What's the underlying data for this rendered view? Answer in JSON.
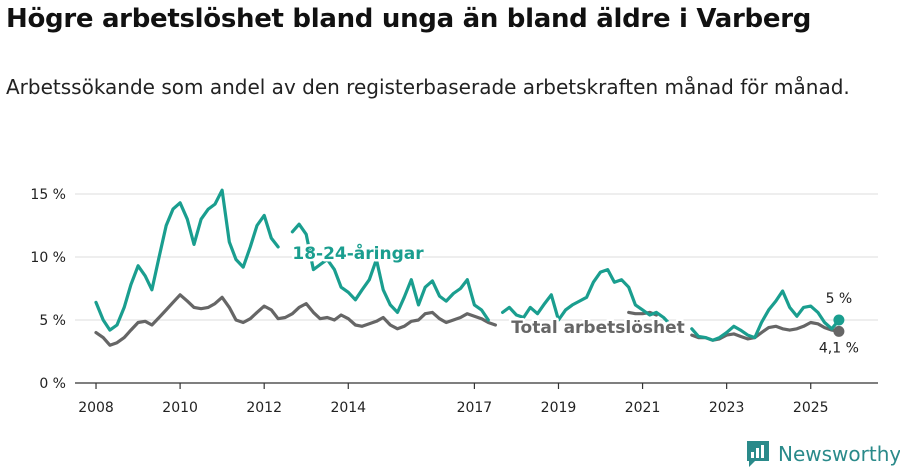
{
  "header": {
    "title": "Högre arbetslöshet bland unga än bland äldre i Varberg",
    "subtitle": "Arbetssökande som andel av den registerbaserade arbetskraften månad för månad."
  },
  "brand": {
    "name": "Newsworthy",
    "icon": "newsworthy-logo-icon",
    "color": "#2a8a8a"
  },
  "chart_data": {
    "type": "line",
    "title": "Högre arbetslöshet bland unga än bland äldre i Varberg",
    "subtitle": "Arbetssökande som andel av den registerbaserade arbetskraften månad för månad.",
    "xlabel": "",
    "ylabel": "",
    "xlim": [
      2007.5,
      2026.6
    ],
    "ylim": [
      0,
      15
    ],
    "yticks": [
      0,
      5,
      10,
      15
    ],
    "ytick_labels": [
      "0 %",
      "5 %",
      "10 %",
      "15 %"
    ],
    "xticks": [
      2008,
      2010,
      2012,
      2014,
      2017,
      2019,
      2021,
      2023,
      2025
    ],
    "xtick_labels": [
      "2008",
      "2010",
      "2012",
      "2014",
      "2017",
      "2019",
      "2021",
      "2023",
      "2025"
    ],
    "grid": "horizontal",
    "series": [
      {
        "name": "18-24-åringar",
        "label": "18-24-åringar",
        "color": "#1a9e8f",
        "end_label": "5 %",
        "end_value": 5.0,
        "x": [
          2008.0,
          2008.17,
          2008.33,
          2008.5,
          2008.67,
          2008.83,
          2009.0,
          2009.17,
          2009.33,
          2009.5,
          2009.67,
          2009.83,
          2010.0,
          2010.17,
          2010.33,
          2010.5,
          2010.67,
          2010.83,
          2011.0,
          2011.17,
          2011.33,
          2011.5,
          2011.67,
          2011.83,
          2012.0,
          2012.17,
          2012.33,
          null,
          2012.67,
          2012.83,
          2013.0,
          2013.17,
          2013.33,
          2013.5,
          2013.67,
          2013.83,
          2014.0,
          2014.17,
          2014.33,
          2014.5,
          2014.67,
          2014.83,
          2015.0,
          2015.17,
          2015.33,
          2015.5,
          2015.67,
          2015.83,
          2016.0,
          2016.17,
          2016.33,
          2016.5,
          2016.67,
          2016.83,
          2017.0,
          2017.17,
          2017.33,
          null,
          2017.67,
          2017.83,
          2018.0,
          2018.17,
          2018.33,
          2018.5,
          2018.67,
          2018.83,
          2019.0,
          2019.17,
          2019.33,
          2019.5,
          2019.67,
          2019.83,
          2020.0,
          2020.17,
          2020.33,
          2020.5,
          2020.67,
          2020.83,
          2021.0,
          2021.17,
          2021.33,
          2021.5,
          2021.67,
          2021.83,
          null,
          2022.17,
          2022.33,
          2022.5,
          2022.67,
          2022.83,
          2023.0,
          2023.17,
          2023.33,
          2023.5,
          2023.67,
          2023.83,
          2024.0,
          2024.17,
          2024.33,
          2024.5,
          2024.67,
          2024.83,
          2025.0,
          2025.17,
          2025.33,
          2025.5,
          2025.67
        ],
        "values": [
          6.4,
          5.0,
          4.2,
          4.6,
          6.0,
          7.8,
          9.3,
          8.5,
          7.4,
          10.0,
          12.5,
          13.8,
          14.3,
          13.0,
          11.0,
          13.0,
          13.8,
          14.2,
          15.3,
          11.2,
          9.8,
          9.2,
          10.8,
          12.5,
          13.3,
          11.5,
          10.8,
          null,
          12.0,
          12.6,
          11.8,
          9.0,
          9.4,
          9.8,
          9.0,
          7.6,
          7.2,
          6.6,
          7.4,
          8.2,
          9.8,
          7.4,
          6.2,
          5.6,
          6.8,
          8.2,
          6.2,
          7.6,
          8.1,
          6.9,
          6.5,
          7.1,
          7.5,
          8.2,
          6.2,
          5.8,
          5.0,
          null,
          5.6,
          6.0,
          5.4,
          5.2,
          6.0,
          5.5,
          6.3,
          7.0,
          5.0,
          5.8,
          6.2,
          6.5,
          6.8,
          8.0,
          8.8,
          9.0,
          8.0,
          8.2,
          7.6,
          6.2,
          5.8,
          5.4,
          5.6,
          5.2,
          4.6,
          4.0,
          null,
          4.3,
          3.7,
          3.6,
          3.4,
          3.6,
          4.0,
          4.5,
          4.2,
          3.8,
          3.6,
          4.8,
          5.8,
          6.5,
          7.3,
          6.0,
          5.3,
          6.0,
          6.1,
          5.6,
          4.8,
          4.3,
          5.0
        ]
      },
      {
        "name": "Total arbetslöshet",
        "label": "Total arbetslöshet",
        "color": "#666666",
        "end_label": "4,1 %",
        "end_value": 4.1,
        "x": [
          2008.0,
          2008.17,
          2008.33,
          2008.5,
          2008.67,
          2008.83,
          2009.0,
          2009.17,
          2009.33,
          2009.5,
          2009.67,
          2009.83,
          2010.0,
          2010.17,
          2010.33,
          2010.5,
          2010.67,
          2010.83,
          2011.0,
          2011.17,
          2011.33,
          2011.5,
          2011.67,
          2011.83,
          2012.0,
          2012.17,
          2012.33,
          2012.5,
          2012.67,
          2012.83,
          2013.0,
          2013.17,
          2013.33,
          2013.5,
          2013.67,
          2013.83,
          2014.0,
          2014.17,
          2014.33,
          2014.5,
          2014.67,
          2014.83,
          2015.0,
          2015.17,
          2015.33,
          2015.5,
          2015.67,
          2015.83,
          2016.0,
          2016.17,
          2016.33,
          2016.5,
          2016.67,
          2016.83,
          2017.0,
          2017.17,
          2017.33,
          2017.5,
          null,
          2020.67,
          2020.83,
          2021.0,
          2021.17,
          2021.33,
          null,
          2022.17,
          2022.33,
          2022.5,
          2022.67,
          2022.83,
          2023.0,
          2023.17,
          2023.33,
          2023.5,
          2023.67,
          2023.83,
          2024.0,
          2024.17,
          2024.33,
          2024.5,
          2024.67,
          2024.83,
          2025.0,
          2025.17,
          2025.33,
          2025.5,
          2025.67
        ],
        "values": [
          4.0,
          3.6,
          3.0,
          3.2,
          3.6,
          4.2,
          4.8,
          4.9,
          4.6,
          5.2,
          5.8,
          6.4,
          7.0,
          6.5,
          6.0,
          5.9,
          6.0,
          6.3,
          6.8,
          6.0,
          5.0,
          4.8,
          5.1,
          5.6,
          6.1,
          5.8,
          5.1,
          5.2,
          5.5,
          6.0,
          6.3,
          5.6,
          5.1,
          5.2,
          5.0,
          5.4,
          5.1,
          4.6,
          4.5,
          4.7,
          4.9,
          5.2,
          4.6,
          4.3,
          4.5,
          4.9,
          5.0,
          5.5,
          5.6,
          5.1,
          4.8,
          5.0,
          5.2,
          5.5,
          5.3,
          5.1,
          4.8,
          4.6,
          null,
          5.6,
          5.5,
          5.5,
          5.6,
          5.4,
          null,
          3.8,
          3.6,
          3.6,
          3.4,
          3.5,
          3.8,
          3.9,
          3.7,
          3.5,
          3.6,
          4.0,
          4.4,
          4.5,
          4.3,
          4.2,
          4.3,
          4.5,
          4.8,
          4.7,
          4.4,
          4.2,
          4.1
        ]
      }
    ]
  }
}
